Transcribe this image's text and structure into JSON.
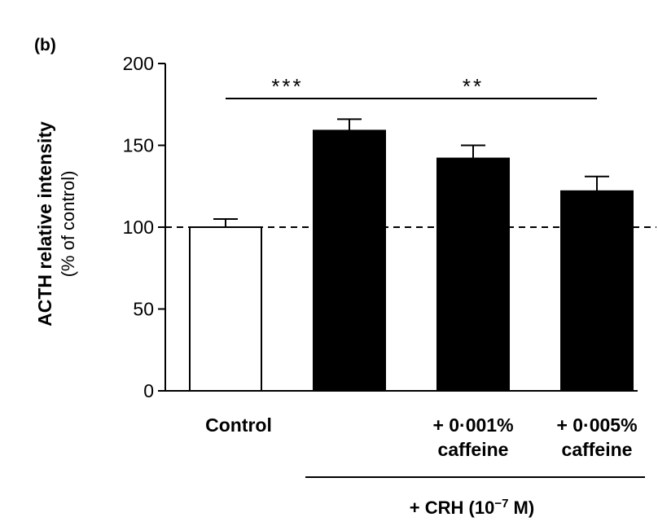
{
  "panel_label": "(b)",
  "chart_data": {
    "type": "bar",
    "ylabel": "ACTH relative intensity",
    "ylabel_sub": "(% of control)",
    "ylim": [
      0,
      200
    ],
    "yticks": [
      0,
      50,
      100,
      150,
      200
    ],
    "categories": [
      {
        "lines": [
          "Control"
        ]
      },
      {
        "lines": [
          ""
        ]
      },
      {
        "lines": [
          "+ 0·001%",
          "caffeine"
        ]
      },
      {
        "lines": [
          "+ 0·005%",
          "caffeine"
        ]
      }
    ],
    "values": [
      100,
      159,
      142,
      122
    ],
    "errors": [
      5,
      7,
      8,
      9
    ],
    "bar_colors": [
      "#ffffff",
      "#000000",
      "#000000",
      "#000000"
    ],
    "reference_line": {
      "value": 100,
      "style": "dashed"
    },
    "significance": [
      {
        "label": "***",
        "from": 0,
        "to": 1
      },
      {
        "label": "**",
        "from": 1,
        "to": 3
      }
    ],
    "group_label": {
      "text": "+ CRH (10",
      "sup": "−7",
      "suffix": " M)",
      "from": 1,
      "to": 3
    },
    "grid": false
  }
}
